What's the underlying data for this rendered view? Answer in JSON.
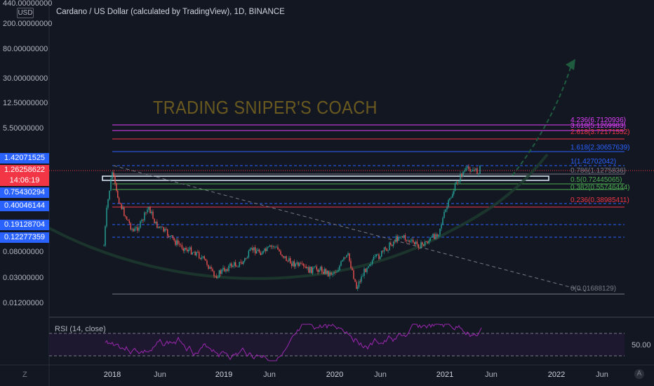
{
  "header": {
    "currency_badge": "USD",
    "title": "Cardano / US Dollar (calculated by TradingView), 1D, BINANCE"
  },
  "watermark": "TRADING SNIPER'S COACH",
  "price_axis": {
    "labels": [
      "440.00000000",
      "200.00000000",
      "80.00000000",
      "30.00000000",
      "12.50000000",
      "5.50000000",
      "0.08000000",
      "0.03000000",
      "0.01200000"
    ],
    "boxes": [
      "1.42071525",
      "1.26258622",
      "14:06:19",
      "0.75430294",
      "0.40046144",
      "0.19128704",
      "0.12277359"
    ]
  },
  "fib_levels": [
    {
      "text": "4.236(6.7120936)",
      "color": "#e040fb"
    },
    {
      "text": "3.618(5.1269983)",
      "color": "#e040fb"
    },
    {
      "text": "2.618(3.72171552)",
      "color": "#f23645"
    },
    {
      "text": "1.618(2.30657639)",
      "color": "#2962ff"
    },
    {
      "text": "1(1.42702042)",
      "color": "#2962ff"
    },
    {
      "text": "0.786(1.1275836)",
      "color": "#787b86"
    },
    {
      "text": "0.5(0.72445065)",
      "color": "#4caf50"
    },
    {
      "text": "0.382(0.55746444)",
      "color": "#4caf50"
    },
    {
      "text": "0.236(0.38985411)",
      "color": "#f23645"
    },
    {
      "text": "0(0.01688129)",
      "color": "#787b86"
    }
  ],
  "rsi": {
    "label": "RSI (14, close)",
    "mid_value": "50.00"
  },
  "time_axis": {
    "timezone_button": "Z",
    "auto_button": "A",
    "ticks": [
      "2018",
      "Jun",
      "2019",
      "Jun",
      "2020",
      "Jun",
      "2021",
      "Jun",
      "2022",
      "Jun"
    ]
  },
  "colors": {
    "background": "#131722",
    "candle_up": "#26a69a",
    "candle_down": "#ef5350",
    "rsi_line": "#9c27b0"
  }
}
